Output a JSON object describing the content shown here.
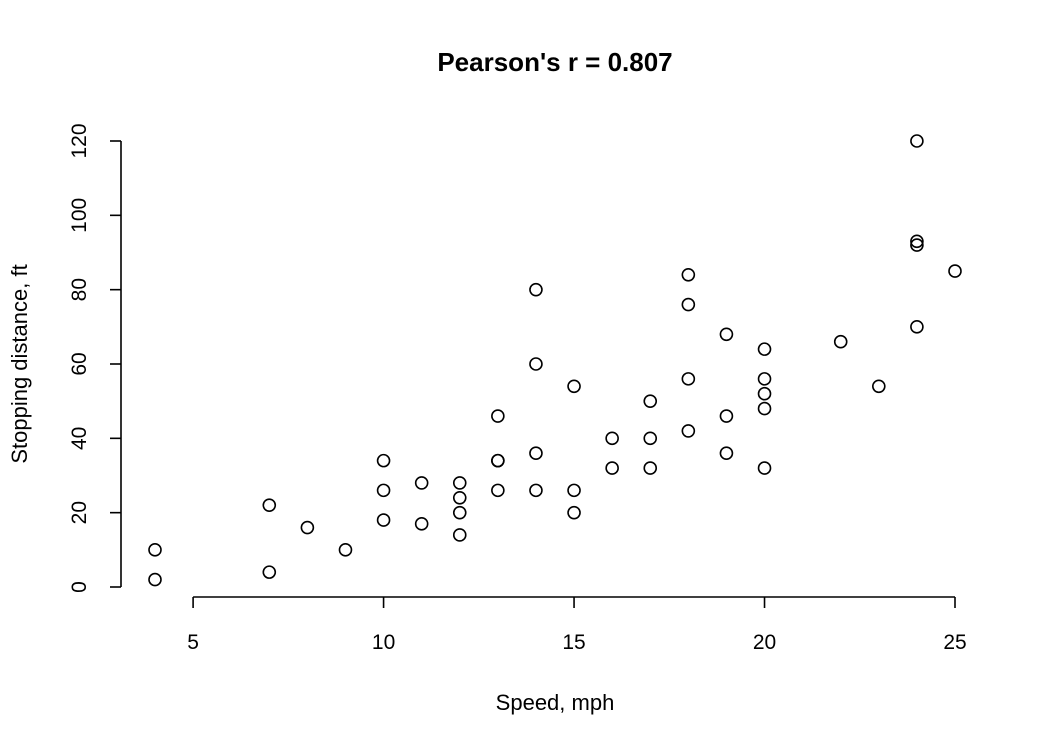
{
  "chart_data": {
    "type": "scatter",
    "title": "Pearson's r =  0.807",
    "xlabel": "Speed, mph",
    "ylabel": "Stopping distance, ft",
    "xlim": [
      4,
      25
    ],
    "ylim": [
      0,
      120
    ],
    "x_ticks": [
      5,
      10,
      15,
      20,
      25
    ],
    "y_ticks": [
      0,
      20,
      40,
      60,
      80,
      100,
      120
    ],
    "x_tick_labels": [
      "5",
      "10",
      "15",
      "20",
      "25"
    ],
    "y_tick_labels": [
      "0",
      "20",
      "40",
      "60",
      "80",
      "100",
      "120"
    ],
    "grid": false,
    "legend": "none",
    "marker": "open-circle",
    "colors": {
      "marker": "#000000",
      "axis": "#000000",
      "background": "#ffffff"
    },
    "x": [
      4,
      4,
      7,
      7,
      8,
      9,
      10,
      10,
      10,
      11,
      11,
      12,
      12,
      12,
      12,
      13,
      13,
      13,
      13,
      14,
      14,
      14,
      14,
      15,
      15,
      15,
      16,
      16,
      17,
      17,
      17,
      18,
      18,
      18,
      18,
      19,
      19,
      19,
      20,
      20,
      20,
      20,
      20,
      22,
      23,
      24,
      24,
      24,
      24,
      25
    ],
    "y": [
      2,
      10,
      4,
      22,
      16,
      10,
      18,
      26,
      34,
      17,
      28,
      14,
      20,
      24,
      28,
      26,
      34,
      34,
      46,
      26,
      36,
      60,
      80,
      20,
      26,
      54,
      32,
      40,
      32,
      40,
      50,
      42,
      56,
      76,
      84,
      36,
      46,
      68,
      32,
      48,
      52,
      56,
      64,
      66,
      54,
      70,
      92,
      93,
      120,
      85
    ]
  }
}
